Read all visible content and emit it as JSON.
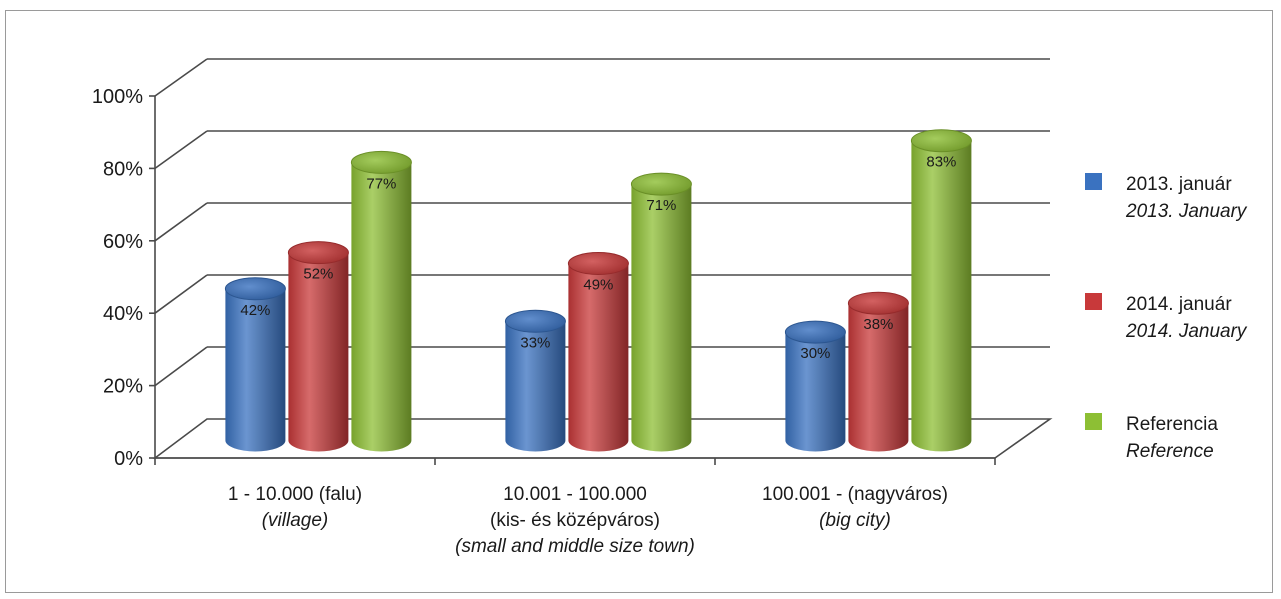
{
  "chart_data": {
    "type": "bar",
    "ylim": [
      0,
      100
    ],
    "yticks": [
      "0%",
      "20%",
      "40%",
      "60%",
      "80%",
      "100%"
    ],
    "grid": true,
    "legend_position": "right",
    "categories": [
      {
        "hu": "1 - 10.000 (falu)",
        "en": [
          "(village)"
        ]
      },
      {
        "hu": "10.001 - 100.000",
        "hu2": "(kis- és középváros)",
        "en": [
          "(small and middle size town)"
        ]
      },
      {
        "hu": "100.001 - (nagyváros)",
        "en": [
          "(big city)"
        ]
      }
    ],
    "series": [
      {
        "name": "2013. január",
        "name_en": "2013. January",
        "color": "#3a72c0",
        "values": [
          42,
          33,
          30
        ],
        "labels": [
          "42%",
          "33%",
          "30%"
        ]
      },
      {
        "name": "2014. január",
        "name_en": "2014. January",
        "color": "#c8393a",
        "values": [
          52,
          49,
          38
        ],
        "labels": [
          "52%",
          "49%",
          "38%"
        ]
      },
      {
        "name": "Referencia",
        "name_en": "Reference",
        "color": "#8dbf34",
        "values": [
          77,
          71,
          83
        ],
        "labels": [
          "77%",
          "71%",
          "83%"
        ]
      }
    ]
  }
}
